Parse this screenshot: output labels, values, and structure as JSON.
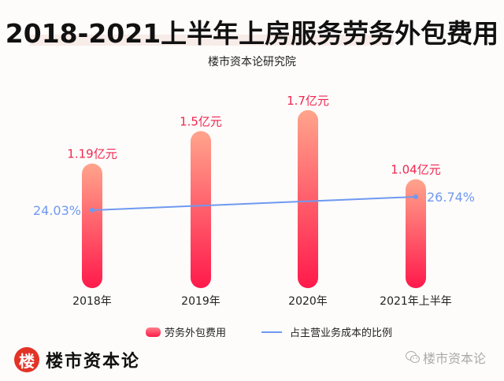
{
  "header": {
    "title": "2018-2021上半年上房服务劳务外包费用",
    "subtitle": "楼市资本论研究院"
  },
  "chart_data": {
    "type": "bar",
    "title": "2018-2021上半年上房服务劳务外包费用",
    "subtitle": "楼市资本论研究院",
    "categories": [
      "2018年",
      "2019年",
      "2020年",
      "2021年上半年"
    ],
    "series": [
      {
        "name": "劳务外包费用",
        "type": "bar",
        "unit": "亿元",
        "values": [
          1.19,
          1.5,
          1.7,
          1.04
        ],
        "labels": [
          "1.19亿元",
          "1.5亿元",
          "1.7亿元",
          "1.04亿元"
        ],
        "color_top": "#ffa48c",
        "color_bottom": "#ff1a4b"
      },
      {
        "name": "占主营业务成本的比例",
        "type": "line",
        "unit": "%",
        "points": [
          {
            "category": "2018年",
            "value": 24.03,
            "label": "24.03%"
          },
          {
            "category": "2021年上半年",
            "value": 26.74,
            "label": "26.74%"
          }
        ],
        "color": "#6f99f0"
      }
    ],
    "xlabel": "",
    "ylabel": "",
    "ylim": [
      0,
      2.0
    ],
    "grid": false,
    "legend_position": "bottom"
  },
  "colors": {
    "bar_label": "#f0264f",
    "line_label": "#6f99f0",
    "brand_red": "#e23327"
  },
  "legend": {
    "items": [
      {
        "label": "劳务外包费用",
        "icon": "rounded-bar-swatch"
      },
      {
        "label": "占主营业务成本的比例",
        "icon": "line-swatch"
      }
    ]
  },
  "footer": {
    "brand_logo_char": "楼",
    "brand_name": "楼市资本论",
    "watermark_text": "楼市资本论",
    "watermark_icon": "wechat-icon"
  }
}
